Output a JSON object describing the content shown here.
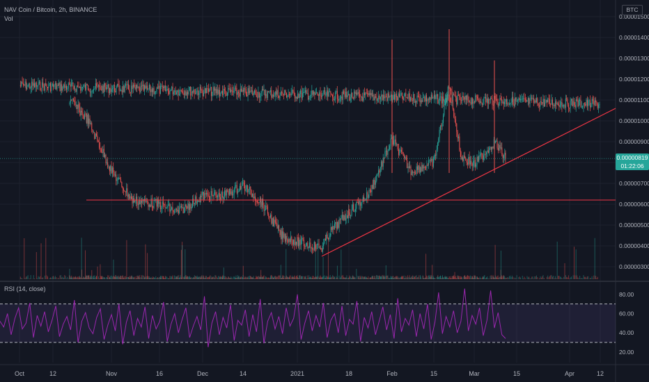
{
  "header": {
    "symbol_line": "NAV Coin / Bitcoin, 2h, BINANCE",
    "volume_label": "Vol",
    "rsi_label": "RSI (14, close)",
    "currency_badge": "BTC"
  },
  "last_price": {
    "value": "0.00000819",
    "countdown": "01:22:06",
    "color": "#26a69a"
  },
  "colors": {
    "up": "#26a69a",
    "down": "#ef5350",
    "rsi": "#9c27b0",
    "trendline": "#f23645",
    "background": "#131722"
  },
  "chart_data": [
    {
      "type": "candlestick",
      "title": "NAV Coin / Bitcoin, 2h, BINANCE",
      "x_ticks": [
        "Oct",
        "12",
        "Nov",
        "16",
        "Dec",
        "14",
        "2021",
        "18",
        "Feb",
        "15",
        "Mar",
        "15",
        "Apr",
        "12"
      ],
      "y_ticks": [
        "0.00000300",
        "0.00000400",
        "0.00000500",
        "0.00000600",
        "0.00000700",
        "0.00000800",
        "0.00000900",
        "0.00001000",
        "0.00001100",
        "0.00001200",
        "0.00001300",
        "0.00001400",
        "0.00001500"
      ],
      "ylim": [
        2.7e-06,
        1.55e-05
      ],
      "close_path": [
        [
          "Oct",
          1.17e-05
        ],
        [
          "12",
          1.08e-05
        ],
        [
          "19 Oct",
          1.1e-05
        ],
        [
          "26 Oct",
          1.01e-05
        ],
        [
          "Nov",
          7.6e-06
        ],
        [
          "8 Nov",
          6.2e-06
        ],
        [
          "16",
          6e-06
        ],
        [
          "23 Nov",
          5.6e-06
        ],
        [
          "Dec",
          6.4e-06
        ],
        [
          "7 Dec",
          6.4e-06
        ],
        [
          "14",
          6.9e-06
        ],
        [
          "21 Dec",
          6.1e-06
        ],
        [
          "28 Dec",
          4.5e-06
        ],
        [
          "2021",
          4.2e-06
        ],
        [
          "7 Jan",
          3.9e-06
        ],
        [
          "12 Jan",
          4.7e-06
        ],
        [
          "18",
          5.6e-06
        ],
        [
          "25 Jan",
          6.5e-06
        ],
        [
          "Feb",
          9.1e-06
        ],
        [
          "8 Feb",
          7.6e-06
        ],
        [
          "15",
          8e-06
        ],
        [
          "20 Feb",
          1.18e-05
        ],
        [
          "25 Feb",
          8.3e-06
        ],
        [
          "Mar",
          7.9e-06
        ],
        [
          "6 Mar",
          9e-06
        ],
        [
          "9 Mar",
          8.19e-06
        ]
      ],
      "spikes": [
        {
          "x": "Feb",
          "high": 1.39e-05
        },
        {
          "x": "20 Feb",
          "high": 1.44e-05
        },
        {
          "x": "6 Mar",
          "high": 1.29e-05
        }
      ],
      "horizontal_line": 6.2e-06,
      "trendline": {
        "from": [
          "7 Jan",
          3.5e-06
        ],
        "to": [
          "12",
          1.06e-05
        ]
      },
      "last_value": 8.19e-06
    },
    {
      "type": "line",
      "title": "RSI (14, close)",
      "y_ticks": [
        "20.00",
        "40.00",
        "60.00",
        "80.00"
      ],
      "ylim": [
        9,
        90
      ],
      "bands": [
        30,
        70
      ],
      "values": [
        52,
        46,
        60,
        38,
        55,
        66,
        44,
        50,
        71,
        35,
        58,
        47,
        62,
        41,
        53,
        68,
        36,
        49,
        57,
        43,
        74,
        30,
        52,
        61,
        45,
        39,
        56,
        65,
        33,
        48,
        59,
        42,
        70,
        28,
        51,
        63,
        37,
        55,
        46,
        67,
        34,
        58,
        44,
        52,
        72,
        31,
        49,
        60,
        40,
        54,
        66,
        35,
        47,
        57,
        43,
        78,
        25,
        50,
        62,
        38,
        56,
        45,
        69,
        32,
        53,
        48,
        64,
        36,
        59,
        41,
        75,
        29,
        52,
        61,
        44,
        57,
        39,
        66,
        47,
        55,
        80,
        33,
        50,
        63,
        42,
        58,
        46,
        71,
        35,
        53,
        60,
        40,
        68,
        37,
        54,
        49,
        73,
        31,
        56,
        45,
        62,
        38,
        52,
        67,
        43,
        59,
        34,
        76,
        41,
        55,
        48,
        64,
        36,
        60,
        44,
        70,
        33,
        51,
        82,
        39,
        57,
        46,
        63,
        40,
        52,
        86,
        42,
        58,
        49,
        66,
        37,
        53,
        84,
        45,
        61,
        38,
        34
      ]
    }
  ]
}
